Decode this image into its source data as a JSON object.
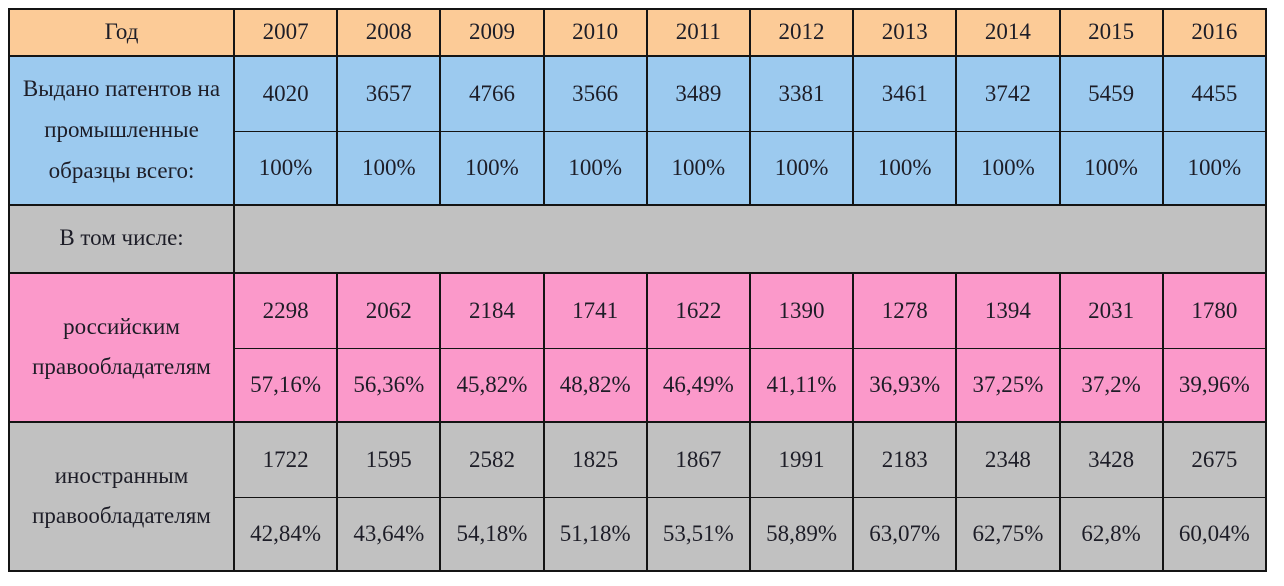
{
  "chart_data": {
    "type": "table",
    "title": "Выдано патентов на промышленные образцы",
    "columns": [
      "Год",
      "2007",
      "2008",
      "2009",
      "2010",
      "2011",
      "2012",
      "2013",
      "2014",
      "2015",
      "2016"
    ],
    "rows": [
      {
        "label": "Выдано патентов на промышленные образцы всего:",
        "counts": [
          4020,
          3657,
          4766,
          3566,
          3489,
          3381,
          3461,
          3742,
          5459,
          4455
        ],
        "percents": [
          "100%",
          "100%",
          "100%",
          "100%",
          "100%",
          "100%",
          "100%",
          "100%",
          "100%",
          "100%"
        ]
      },
      {
        "label": "В том числе:"
      },
      {
        "label": "российским правообладателям",
        "counts": [
          2298,
          2062,
          2184,
          1741,
          1622,
          1390,
          1278,
          1394,
          2031,
          1780
        ],
        "percents": [
          "57,16%",
          "56,36%",
          "45,82%",
          "48,82%",
          "46,49%",
          "41,11%",
          "36,93%",
          "37,25%",
          "37,2%",
          "39,96%"
        ]
      },
      {
        "label": "иностранным правообладателям",
        "counts": [
          1722,
          1595,
          2582,
          1825,
          1867,
          1991,
          2183,
          2348,
          3428,
          2675
        ],
        "percents": [
          "42,84%",
          "43,64%",
          "54,18%",
          "51,18%",
          "53,51%",
          "58,89%",
          "63,07%",
          "62,75%",
          "62,8%",
          "60,04%"
        ]
      }
    ],
    "layout_hints": {
      "header_background": "#fccb97",
      "row_backgrounds": [
        "#9ccaef",
        "#c1c1c1",
        "#fb99ca",
        "#c1c1c1"
      ],
      "grid": "on",
      "border_color": "#141414",
      "label_column_merged_over_two_rows": true,
      "including_row_value_area_merged": true
    }
  },
  "colors": {
    "header_orange": "#fccb97",
    "total_blue": "#9ccaef",
    "russian_pink": "#fb99ca",
    "foreign_gray": "#c1c1c1",
    "border": "#141414",
    "text": "#1d1d27",
    "page_background": "#ffffff"
  }
}
